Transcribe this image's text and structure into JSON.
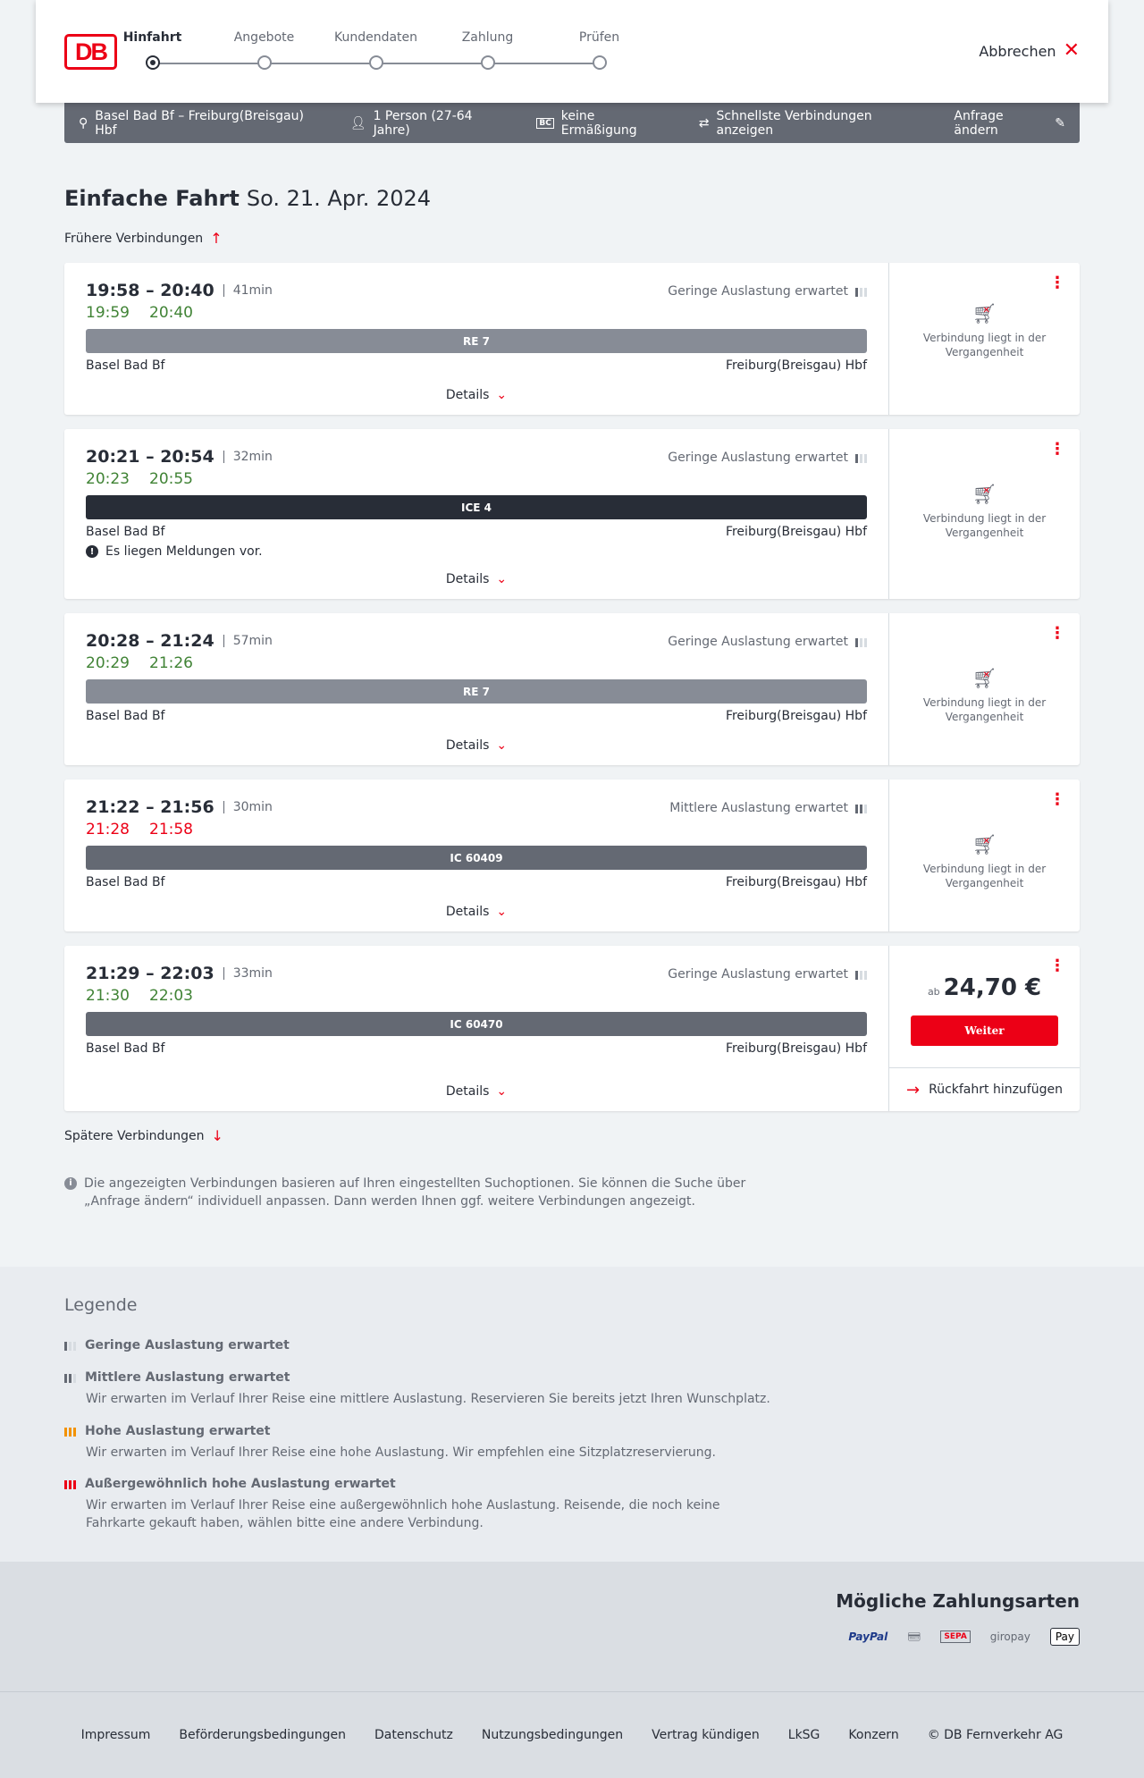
{
  "header": {
    "logo": "DB",
    "steps": [
      "Hinfahrt",
      "Angebote",
      "Kundendaten",
      "Zahlung",
      "Prüfen"
    ],
    "active_step": 0,
    "cancel": "Abbrechen"
  },
  "summary": {
    "route": "Basel Bad Bf – Freiburg(Breisgau) Hbf",
    "persons": "1 Person (27-64 Jahre)",
    "discount": "keine Ermäßigung",
    "fastest": "Schnellste Verbindungen anzeigen",
    "edit": "Anfrage ändern"
  },
  "page": {
    "title": "Einfache Fahrt",
    "date": "So. 21. Apr. 2024",
    "earlier": "Frühere Verbindungen",
    "later": "Spätere Verbindungen",
    "details": "Details",
    "past": "Verbindung liegt in der Vergangenheit",
    "price_prefix": "ab",
    "continue": "Weiter",
    "return": "Rückfahrt hinzufügen"
  },
  "colors": {
    "accent": "#ec0016",
    "ontime": "#408335",
    "delay": "#ec0016"
  },
  "connections": [
    {
      "times": "19:58 – 20:40",
      "duration": "41min",
      "occupancy": "Geringe Auslastung erwartet",
      "level": 1,
      "rt_dep": "19:59",
      "rt_arr": "20:40",
      "dep_delayed": false,
      "arr_delayed": false,
      "train": "RE 7",
      "train_color": "#878c96",
      "from": "Basel Bad Bf",
      "to": "Freiburg(Breisgau) Hbf",
      "past": true
    },
    {
      "times": "20:21 – 20:54",
      "duration": "32min",
      "occupancy": "Geringe Auslastung erwartet",
      "level": 1,
      "rt_dep": "20:23",
      "rt_arr": "20:55",
      "dep_delayed": false,
      "arr_delayed": false,
      "train": "ICE 4",
      "train_color": "#282d37",
      "from": "Basel Bad Bf",
      "to": "Freiburg(Breisgau) Hbf",
      "message": "Es liegen Meldungen vor.",
      "past": true
    },
    {
      "times": "20:28 – 21:24",
      "duration": "57min",
      "occupancy": "Geringe Auslastung erwartet",
      "level": 1,
      "rt_dep": "20:29",
      "rt_arr": "21:26",
      "dep_delayed": false,
      "arr_delayed": false,
      "train": "RE 7",
      "train_color": "#878c96",
      "from": "Basel Bad Bf",
      "to": "Freiburg(Breisgau) Hbf",
      "past": true
    },
    {
      "times": "21:22 – 21:56",
      "duration": "30min",
      "occupancy": "Mittlere Auslastung erwartet",
      "level": 2,
      "rt_dep": "21:28",
      "rt_arr": "21:58",
      "dep_delayed": true,
      "arr_delayed": true,
      "train": "IC 60409",
      "train_color": "#646973",
      "from": "Basel Bad Bf",
      "to": "Freiburg(Breisgau) Hbf",
      "past": true
    },
    {
      "times": "21:29 – 22:03",
      "duration": "33min",
      "occupancy": "Geringe Auslastung erwartet",
      "level": 1,
      "rt_dep": "21:30",
      "rt_arr": "22:03",
      "dep_delayed": false,
      "arr_delayed": false,
      "train": "IC 60470",
      "train_color": "#646973",
      "from": "Basel Bad Bf",
      "to": "Freiburg(Breisgau) Hbf",
      "past": false,
      "price": "24,70 €"
    }
  ],
  "note": "Die angezeigten Verbindungen basieren auf Ihren eingestellten Suchoptionen. Sie können die Suche über „Anfrage ändern“ individuell anpassen. Dann werden Ihnen ggf. weitere Verbindungen angezeigt.",
  "legend": {
    "title": "Legende",
    "items": [
      {
        "title": "Geringe Auslastung erwartet",
        "text": "",
        "color": "#646973",
        "level": 1
      },
      {
        "title": "Mittlere Auslastung erwartet",
        "text": "Wir erwarten im Verlauf Ihrer Reise eine mittlere Auslastung. Reservieren Sie bereits jetzt Ihren Wunschplatz.",
        "color": "#646973",
        "level": 2
      },
      {
        "title": "Hohe Auslastung erwartet",
        "text": "Wir erwarten im Verlauf Ihrer Reise eine hohe Auslastung. Wir empfehlen eine Sitzplatzreservierung.",
        "color": "#f39200",
        "level": 3
      },
      {
        "title": "Außergewöhnlich hohe Auslastung erwartet",
        "text": "Wir erwarten im Verlauf Ihrer Reise eine außergewöhnlich hohe Auslastung. Reisende, die noch keine Fahrkarte gekauft haben, wählen bitte eine andere Verbindung.",
        "color": "#ec0016",
        "level": 4
      }
    ]
  },
  "payment": {
    "title": "Mögliche Zahlungsarten",
    "methods": [
      {
        "icon": "paypal-icon",
        "label": "PayPal"
      },
      {
        "icon": "contactless-card-icon",
        "label": ""
      },
      {
        "icon": "sepa-icon",
        "label": "SEPA"
      },
      {
        "icon": "giropay-icon",
        "label": "giropay"
      },
      {
        "icon": "apple-pay-icon",
        "label": "Pay"
      }
    ]
  },
  "footer": {
    "links": [
      "Impressum",
      "Beförderungsbedingungen",
      "Datenschutz",
      "Nutzungsbedingungen",
      "Vertrag kündigen",
      "LkSG",
      "Konzern",
      "© DB Fernverkehr AG"
    ]
  }
}
